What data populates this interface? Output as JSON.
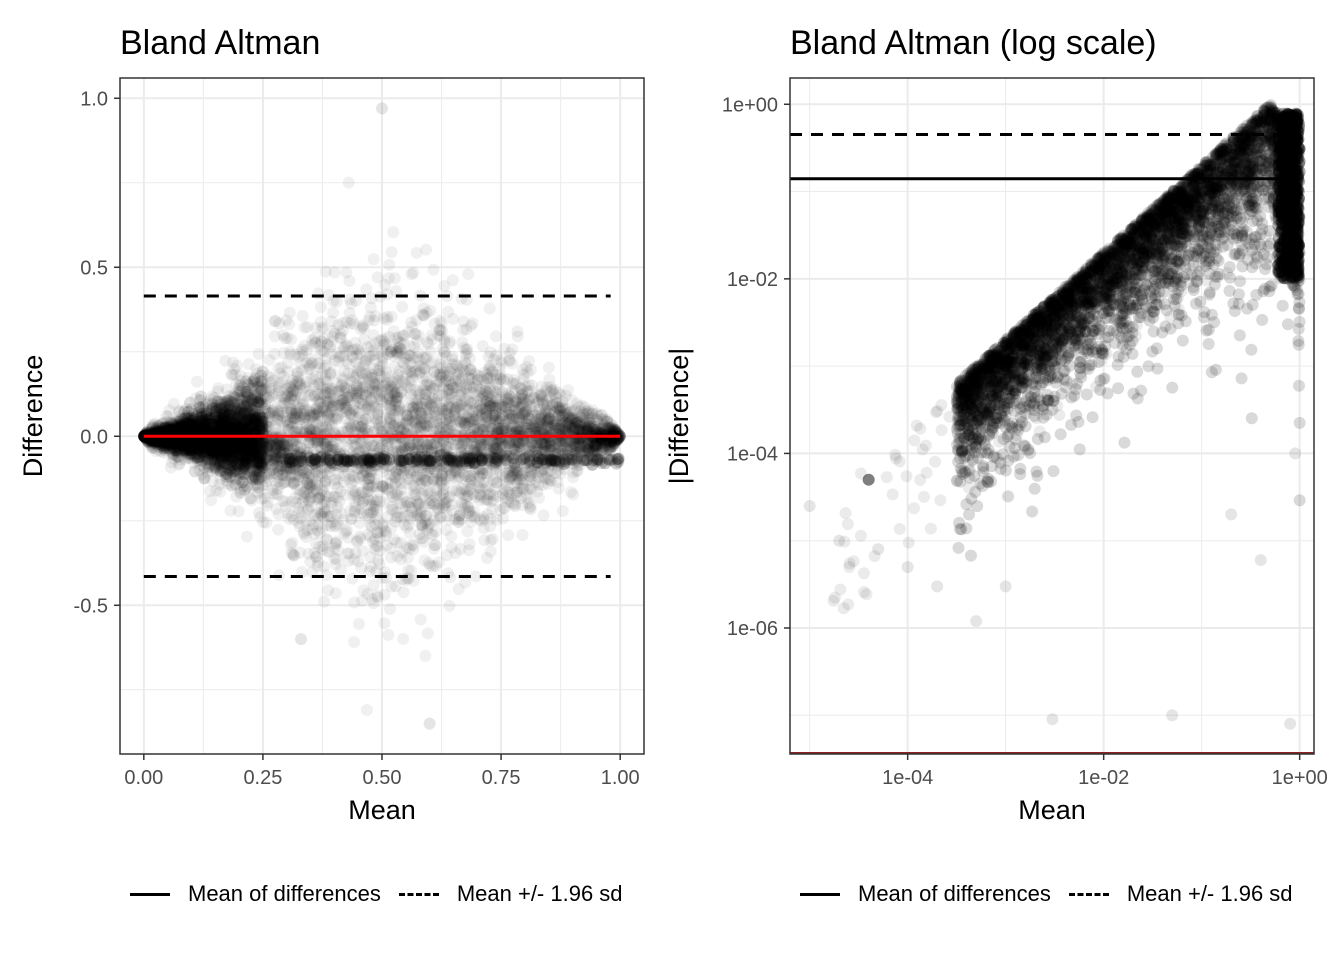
{
  "chart_data": [
    {
      "type": "scatter",
      "title": "Bland Altman",
      "xlabel": "Mean",
      "ylabel": "Difference",
      "xlim": [
        -0.05,
        1.05
      ],
      "ylim": [
        -0.94,
        1.06
      ],
      "x_ticks": [
        0,
        0.25,
        0.5,
        0.75,
        1
      ],
      "x_tick_labels": [
        "0.00",
        "0.25",
        "0.50",
        "0.75",
        "1.00"
      ],
      "y_ticks": [
        -0.5,
        0,
        0.5,
        1
      ],
      "y_tick_labels": [
        "-0.5",
        "0.0",
        "0.5",
        "1.0"
      ],
      "grid": true,
      "point_color": "#000000",
      "point_alpha": 0.06,
      "point_cloud": {
        "shape": "diamond",
        "x_range": [
          0,
          1
        ],
        "max_abs_difference": 1,
        "notable_points": [
          [
            0.5,
            0.97
          ],
          [
            0.6,
            -0.85
          ],
          [
            0.33,
            -0.6
          ]
        ]
      },
      "lines": [
        {
          "label": "Mean of differences",
          "style": "solid",
          "y": 0,
          "color": "#ff0000",
          "x_range": [
            0,
            1
          ]
        },
        {
          "label": "Mean +/- 1.96 sd",
          "style": "dashed",
          "y": 0.415,
          "color": "#000000",
          "x_range": [
            0,
            0.98
          ]
        },
        {
          "label": "Mean +/- 1.96 sd",
          "style": "dashed",
          "y": -0.415,
          "color": "#000000",
          "x_range": [
            0,
            0.98
          ]
        }
      ],
      "legend": {
        "position": "bottom",
        "items": [
          {
            "label": "Mean of differences",
            "style": "solid"
          },
          {
            "label": "Mean +/- 1.96 sd",
            "style": "dashed"
          }
        ]
      }
    },
    {
      "type": "scatter",
      "title": "Bland Altman (log scale)",
      "xlabel": "Mean",
      "ylabel": "|Difference|",
      "x_scale": "log10",
      "y_scale": "log10",
      "xlim": [
        6.3e-06,
        1.4
      ],
      "ylim": [
        3.6e-08,
        2.0
      ],
      "x_ticks": [
        0.0001,
        0.01,
        1
      ],
      "x_tick_labels": [
        "1e-04",
        "1e-02",
        "1e+00"
      ],
      "y_ticks": [
        1e-06,
        0.0001,
        0.01,
        1
      ],
      "y_tick_labels": [
        "1e-06",
        "1e-04",
        "1e-02",
        "1e+00"
      ],
      "grid": true,
      "point_color": "#000000",
      "point_alpha": 0.08,
      "point_cloud": {
        "description_points": [
          [
            1e-05,
            2.5e-05
          ],
          [
            2e-05,
            1e-05
          ],
          [
            4e-05,
            5e-05
          ],
          [
            5e-05,
            8e-06
          ],
          [
            0.0001,
            5e-06
          ],
          [
            0.0002,
            3e-06
          ],
          [
            0.0005,
            1.2e-06
          ],
          [
            0.001,
            3e-06
          ],
          [
            0.003,
            9e-08
          ],
          [
            0.05,
            1e-07
          ],
          [
            0.2,
            2e-05
          ],
          [
            0.4,
            6e-06
          ],
          [
            0.8,
            8e-08
          ],
          [
            0.9,
            0.0001
          ]
        ],
        "upper_edge": [
          [
            1e-05,
            2e-05
          ],
          [
            0.001,
            0.002
          ],
          [
            0.1,
            0.2
          ],
          [
            0.5,
            1.0
          ],
          [
            1,
            0.02
          ]
        ]
      },
      "lines": [
        {
          "label": "Mean of differences",
          "style": "solid",
          "y": 0.14,
          "color": "#000000"
        },
        {
          "label": "Mean +/- 1.96 sd",
          "style": "dashed",
          "y": 0.45,
          "color": "#000000"
        }
      ],
      "legend": {
        "position": "bottom",
        "items": [
          {
            "label": "Mean of differences",
            "style": "solid"
          },
          {
            "label": "Mean +/- 1.96 sd",
            "style": "dashed"
          }
        ]
      }
    }
  ]
}
